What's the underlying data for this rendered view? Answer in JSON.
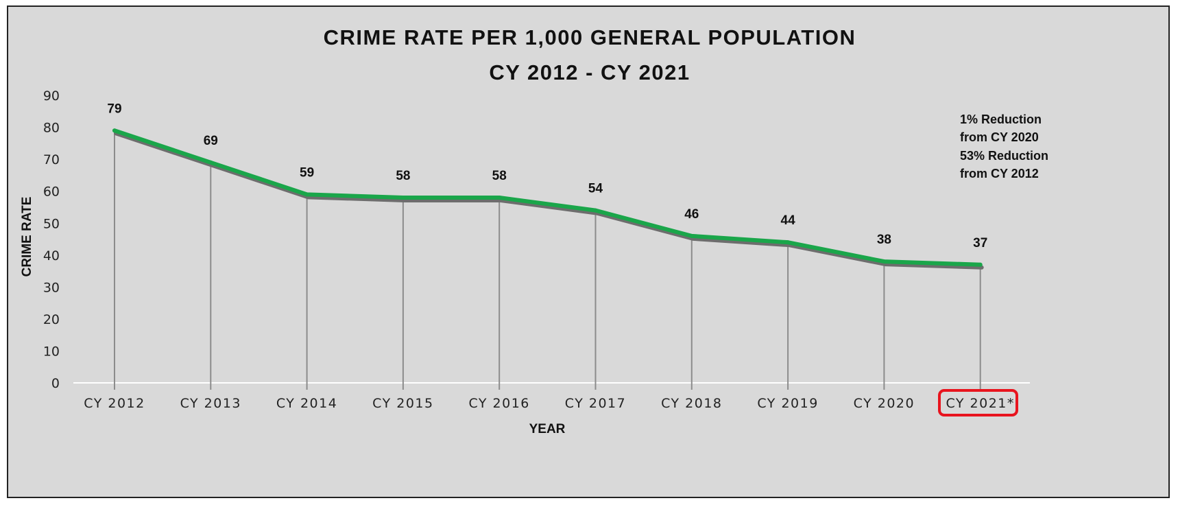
{
  "chart_data": {
    "type": "line",
    "title": "CRIME RATE PER 1,000 GENERAL POPULATION",
    "subtitle": "CY 2012 - CY 2021",
    "xlabel": "YEAR",
    "ylabel": "CRIME RATE",
    "categories": [
      "CY 2012",
      "CY 2013",
      "CY 2014",
      "CY 2015",
      "CY 2016",
      "CY 2017",
      "CY 2018",
      "CY 2019",
      "CY 2020",
      "CY 2021*"
    ],
    "series": [
      {
        "values": [
          79,
          69,
          59,
          58,
          58,
          54,
          46,
          44,
          38,
          37
        ]
      }
    ],
    "data_labels": [
      "79",
      "69",
      "59",
      "58",
      "58",
      "54",
      "46",
      "44",
      "38",
      "37"
    ],
    "ylim": [
      0,
      90
    ],
    "yticks": [
      "0",
      "10",
      "20",
      "30",
      "40",
      "50",
      "60",
      "70",
      "80",
      "90"
    ],
    "grid": false,
    "drop_lines": true,
    "highlighted_category": "CY 2021*",
    "annotation": [
      "1% Reduction",
      "from CY 2020",
      "53% Reduction",
      "from CY 2012"
    ],
    "colors": {
      "line": "#1aa64a",
      "shadow": "#6d6d6d",
      "drop_line": "#8c8c8c",
      "highlight_box": "#e8141e",
      "background": "#d9d9d9"
    }
  }
}
